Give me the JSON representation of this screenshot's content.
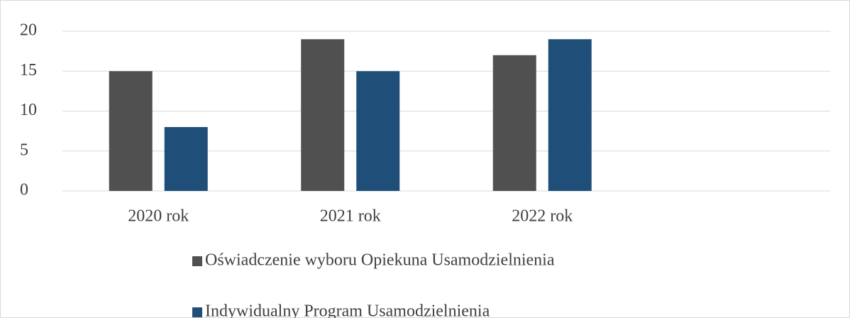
{
  "chart_data": {
    "type": "bar",
    "categories": [
      "2020 rok",
      "2021 rok",
      "2022 rok",
      null
    ],
    "series": [
      {
        "name": "Oświadczenie wyboru Opiekuna Usamodzielnienia",
        "color": "#505050",
        "values": [
          15,
          19,
          17,
          null
        ]
      },
      {
        "name": "Indywidualny Program Usamodzielnienia",
        "color": "#1f4e79",
        "values": [
          8,
          15,
          19,
          null
        ]
      }
    ],
    "ylim": [
      0,
      20
    ],
    "yticks": [
      0,
      5,
      10,
      15,
      20
    ],
    "grid": true,
    "legend": "bottom"
  }
}
